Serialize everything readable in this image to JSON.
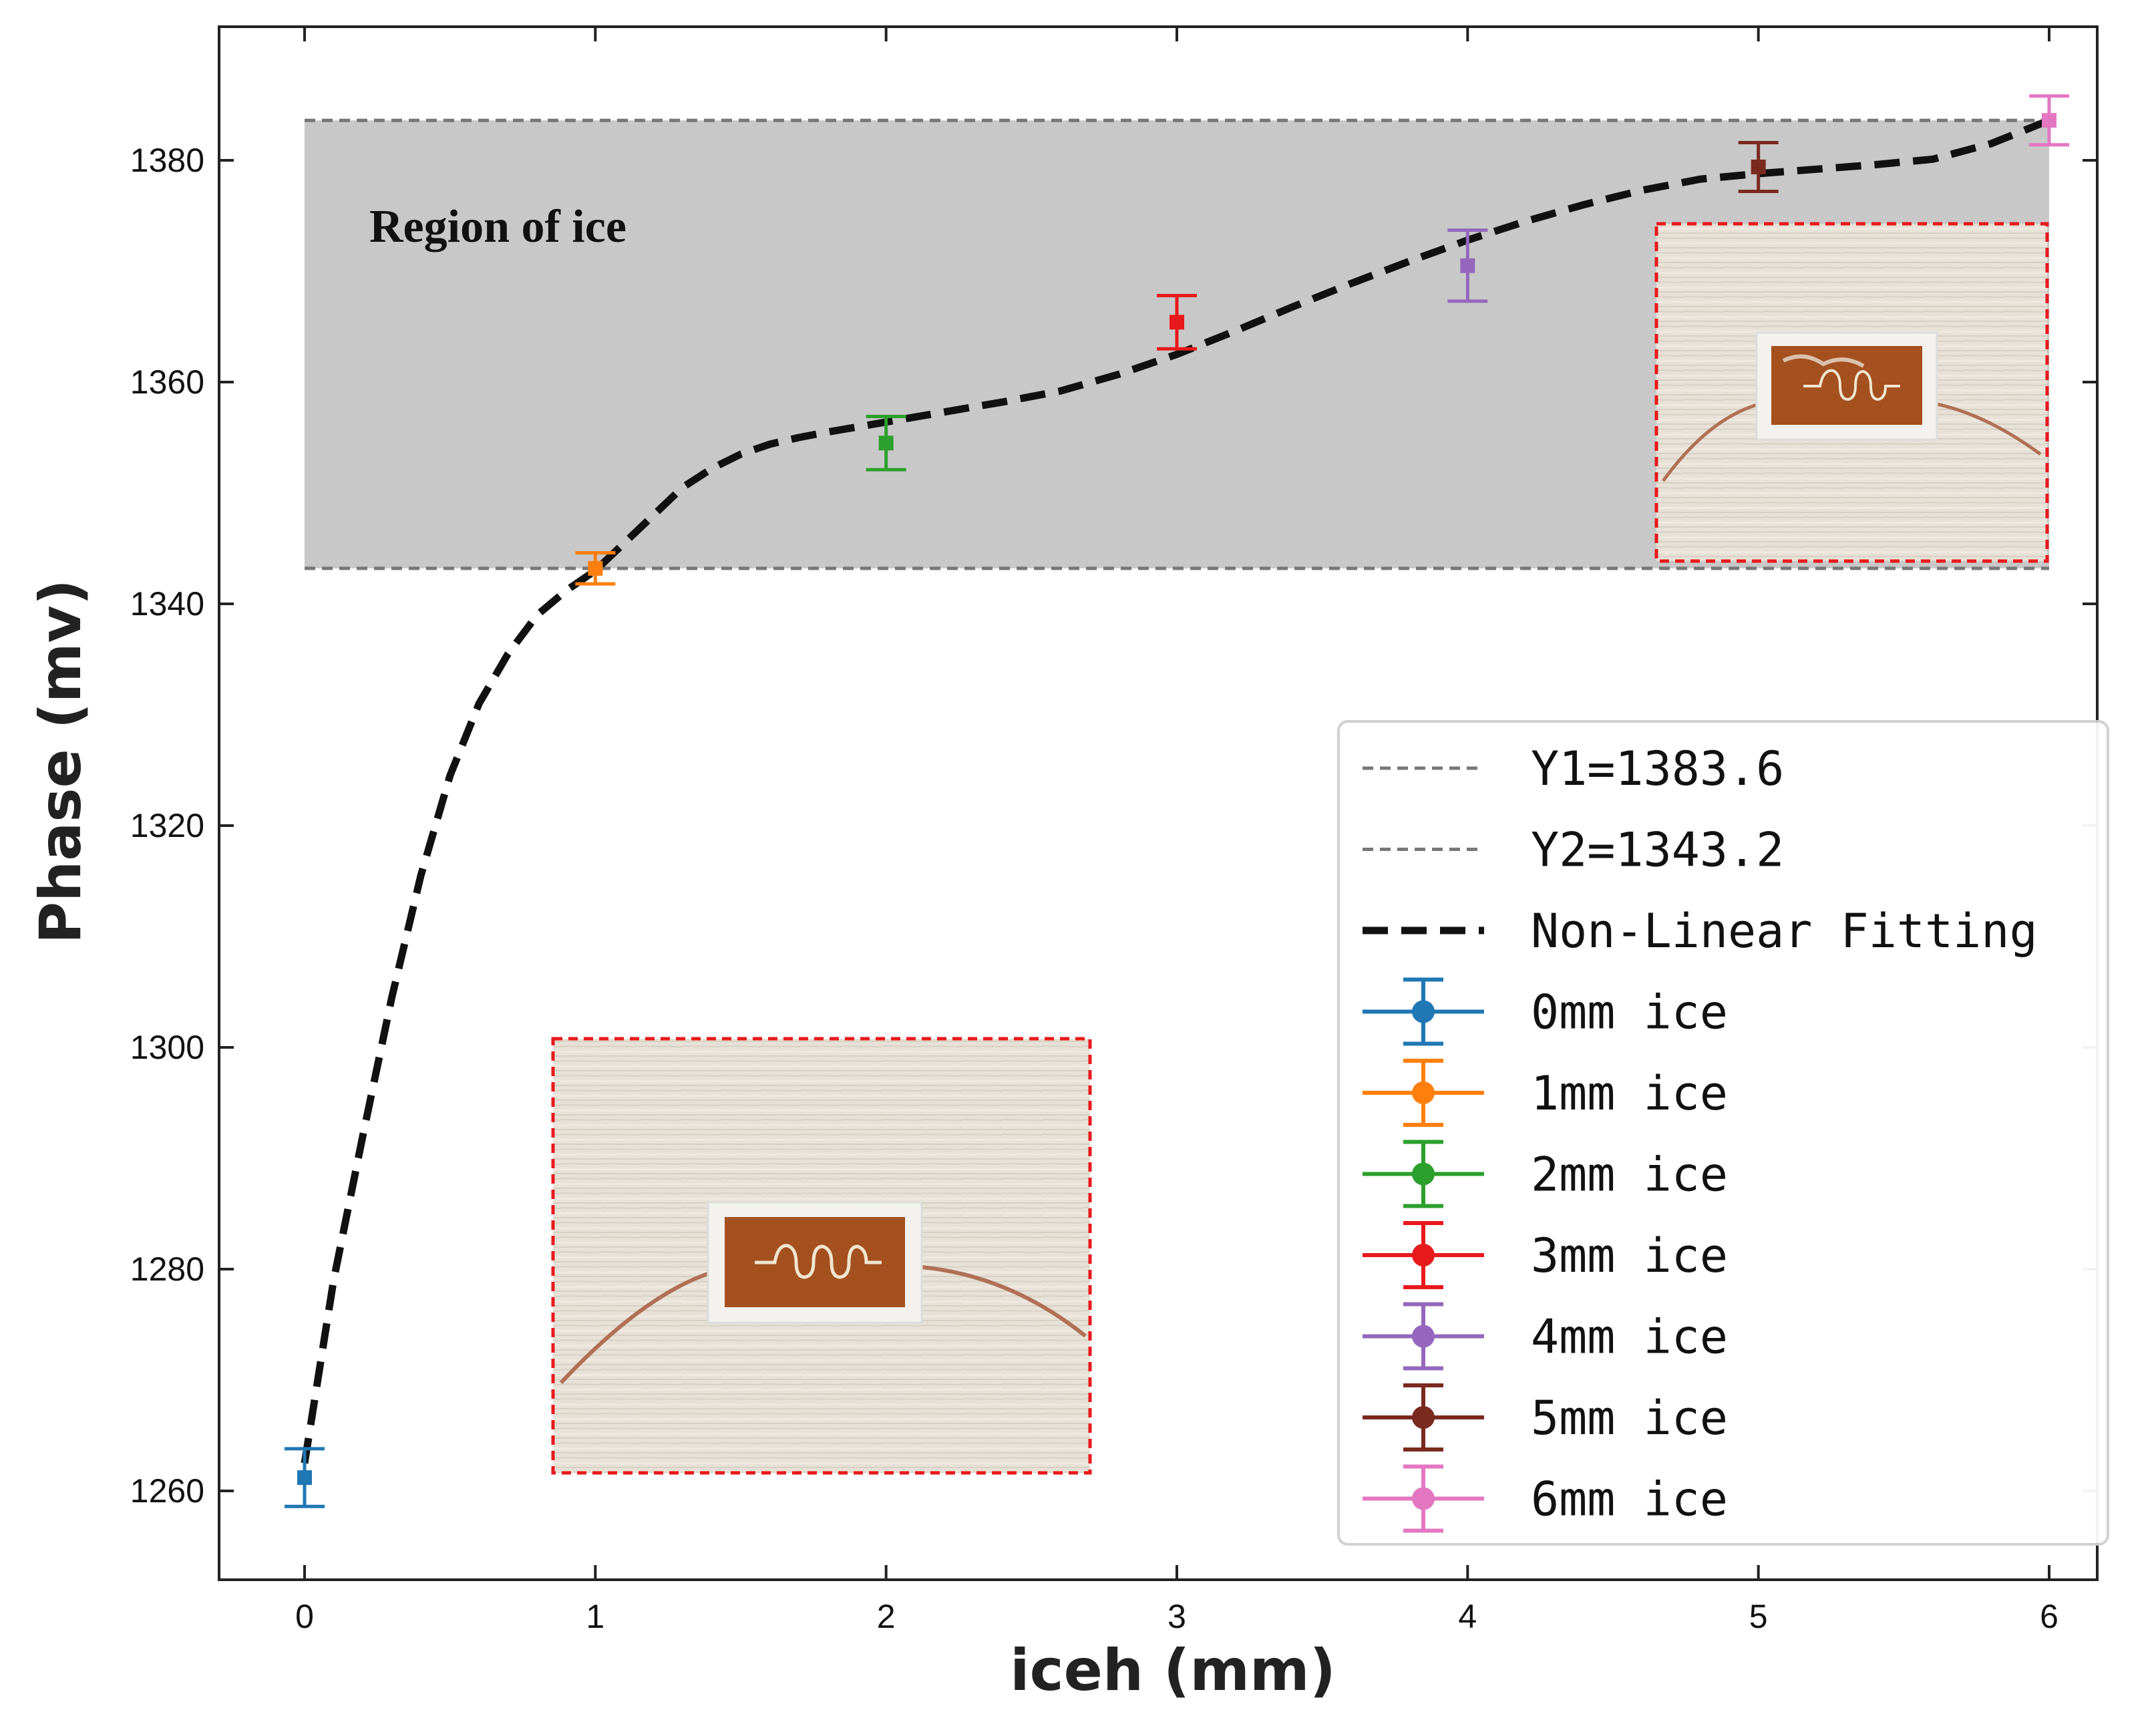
{
  "chart_data": {
    "type": "scatter",
    "xlabel": "iceh (mm)",
    "ylabel": "Phase (mv)",
    "xlim": [
      -0.3,
      6.3
    ],
    "ylim": [
      1252,
      1392
    ],
    "x_ticks": [
      "0",
      "1",
      "2",
      "3",
      "4",
      "5",
      "6"
    ],
    "y_ticks": [
      "1260",
      "1280",
      "1300",
      "1320",
      "1340",
      "1360",
      "1380"
    ],
    "region": {
      "label": "Region of ice",
      "y_low": 1343.2,
      "y_high": 1383.6,
      "color": "#c8c8c8"
    },
    "reference_lines": [
      {
        "name": "Y1=1383.6",
        "y": 1383.6,
        "color": "#777777"
      },
      {
        "name": "Y2=1343.2",
        "y": 1343.2,
        "color": "#777777"
      }
    ],
    "fit": {
      "name": "Non-Linear Fitting",
      "color": "#111111",
      "points": [
        [
          0.0,
          1262.5
        ],
        [
          0.1,
          1279.0
        ],
        [
          0.2,
          1292.0
        ],
        [
          0.3,
          1304.5
        ],
        [
          0.4,
          1315.5
        ],
        [
          0.5,
          1324.5
        ],
        [
          0.6,
          1331.0
        ],
        [
          0.7,
          1335.5
        ],
        [
          0.8,
          1339.0
        ],
        [
          0.9,
          1341.2
        ],
        [
          1.0,
          1343.0
        ],
        [
          1.1,
          1345.5
        ],
        [
          1.2,
          1348.0
        ],
        [
          1.3,
          1350.5
        ],
        [
          1.4,
          1352.2
        ],
        [
          1.5,
          1353.5
        ],
        [
          1.6,
          1354.4
        ],
        [
          1.7,
          1355.0
        ],
        [
          1.8,
          1355.5
        ],
        [
          2.0,
          1356.4
        ],
        [
          2.2,
          1357.3
        ],
        [
          2.4,
          1358.2
        ],
        [
          2.6,
          1359.2
        ],
        [
          2.8,
          1360.7
        ],
        [
          3.0,
          1362.5
        ],
        [
          3.2,
          1364.6
        ],
        [
          3.4,
          1366.8
        ],
        [
          3.6,
          1368.9
        ],
        [
          3.8,
          1370.9
        ],
        [
          4.0,
          1372.8
        ],
        [
          4.2,
          1374.5
        ],
        [
          4.4,
          1376.0
        ],
        [
          4.6,
          1377.3
        ],
        [
          4.8,
          1378.3
        ],
        [
          5.0,
          1378.8
        ],
        [
          5.2,
          1379.2
        ],
        [
          5.4,
          1379.6
        ],
        [
          5.6,
          1380.1
        ],
        [
          5.8,
          1381.5
        ],
        [
          6.0,
          1383.6
        ]
      ]
    },
    "series": [
      {
        "name": "0mm ice",
        "x": 0,
        "y": 1261.2,
        "err": 2.6,
        "color": "#1f77b4"
      },
      {
        "name": "1mm ice",
        "x": 1,
        "y": 1343.2,
        "err": 1.4,
        "color": "#ff7f0e"
      },
      {
        "name": "2mm ice",
        "x": 2,
        "y": 1354.5,
        "err": 2.4,
        "color": "#2ca02c"
      },
      {
        "name": "3mm ice",
        "x": 3,
        "y": 1365.4,
        "err": 2.4,
        "color": "#e8191c"
      },
      {
        "name": "4mm ice",
        "x": 4,
        "y": 1370.5,
        "err": 3.2,
        "color": "#9467bd"
      },
      {
        "name": "5mm ice",
        "x": 5,
        "y": 1379.4,
        "err": 2.2,
        "color": "#7a2a1f"
      },
      {
        "name": "6mm ice",
        "x": 6,
        "y": 1383.6,
        "err": 2.2,
        "color": "#e377c2"
      }
    ],
    "legend_position": "lower-right",
    "grid": false
  }
}
